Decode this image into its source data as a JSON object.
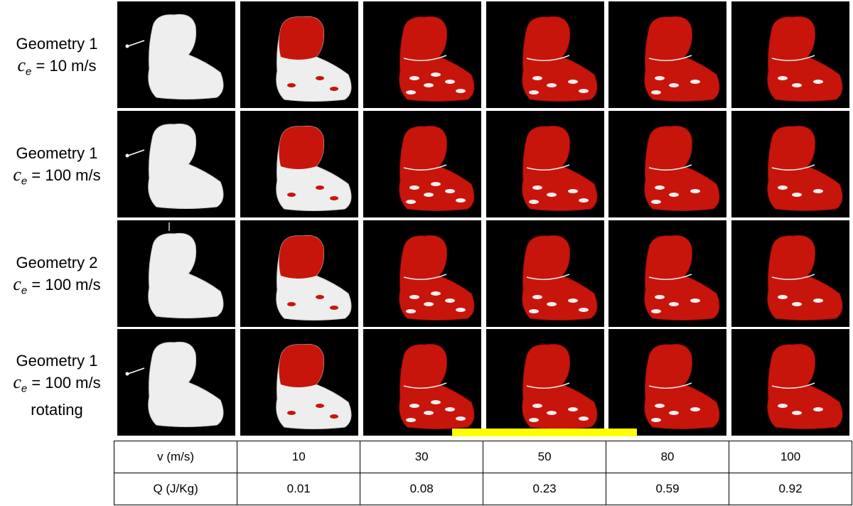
{
  "rows": [
    {
      "title": "Geometry 1",
      "condition": {
        "symbol": "c",
        "subscript": "e",
        "text": "= 10 m/s"
      }
    },
    {
      "title": "Geometry 1",
      "condition": {
        "symbol": "c",
        "subscript": "e",
        "text": "= 100 m/s"
      }
    },
    {
      "title": "Geometry 2",
      "condition": {
        "symbol": "c",
        "subscript": "e",
        "text": "= 100 m/s"
      }
    },
    {
      "title": "Geometry 1",
      "condition": {
        "symbol": "c",
        "subscript": "e",
        "text": "= 100 m/s"
      },
      "note": "rotating"
    }
  ],
  "table": {
    "rows": [
      [
        "v (m/s)",
        "10",
        "30",
        "50",
        "80",
        "100"
      ],
      [
        "Q (J/Kg)",
        "0.01",
        "0.08",
        "0.23",
        "0.59",
        "0.92"
      ]
    ]
  }
}
